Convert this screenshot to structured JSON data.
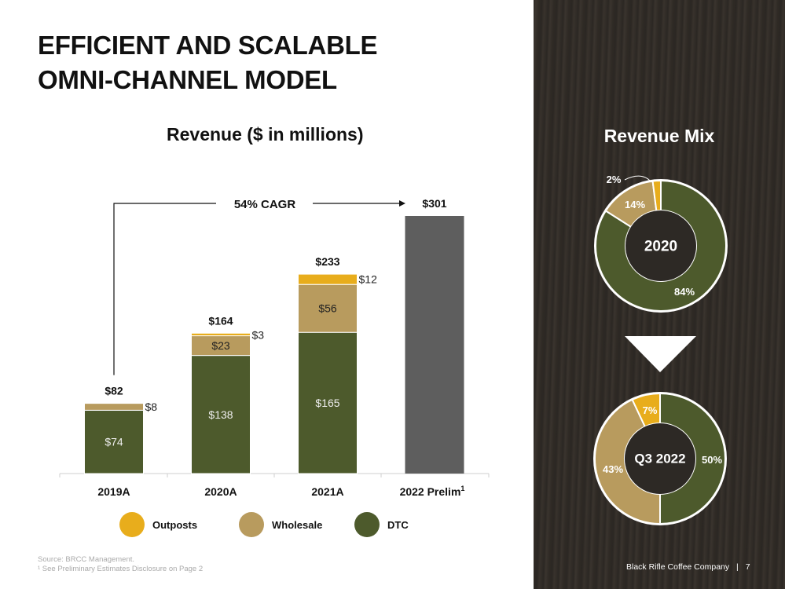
{
  "title_line1": "EFFICIENT AND SCALABLE",
  "title_line2": "OMNI-CHANNEL MODEL",
  "chart_data": [
    {
      "type": "bar",
      "stacked": true,
      "title": "Revenue ($ in millions)",
      "categories": [
        "2019A",
        "2020A",
        "2021A",
        "2022 Prelim"
      ],
      "category_footnote": "1",
      "series": [
        {
          "name": "DTC",
          "values": [
            74,
            138,
            165,
            null
          ],
          "labels": [
            "$74",
            "$138",
            "$165",
            ""
          ]
        },
        {
          "name": "Wholesale",
          "values": [
            8,
            23,
            56,
            null
          ],
          "labels": [
            "$8",
            "$23",
            "$56",
            ""
          ]
        },
        {
          "name": "Outposts",
          "values": [
            0,
            3,
            12,
            null
          ],
          "labels": [
            "",
            "$3",
            "$12",
            ""
          ]
        },
        {
          "name": "2022 Prelim Total",
          "values": [
            null,
            null,
            null,
            301
          ]
        }
      ],
      "totals": [
        "$82",
        "$164",
        "$233",
        "$301"
      ],
      "annotation": "54% CAGR",
      "ylim": [
        0,
        301
      ],
      "legend": [
        "Outposts",
        "Wholesale",
        "DTC"
      ]
    },
    {
      "type": "pie",
      "title": "Revenue Mix",
      "center_label": "2020",
      "labels": [
        "DTC",
        "Wholesale",
        "Outposts"
      ],
      "values": [
        84,
        14,
        2
      ],
      "value_labels": [
        "84%",
        "14%",
        "2%"
      ]
    },
    {
      "type": "pie",
      "title": "Revenue Mix",
      "center_label": "Q3 2022",
      "labels": [
        "DTC",
        "Wholesale",
        "Outposts"
      ],
      "values": [
        50,
        43,
        7
      ],
      "value_labels": [
        "50%",
        "43%",
        "7%"
      ]
    }
  ],
  "colors": {
    "dtc": "#4d5a2c",
    "wholesale": "#b89b5e",
    "outposts": "#e8ad1c",
    "prelim": "#5e5e5e",
    "panel": "#2d2925"
  },
  "legend_labels": {
    "outposts": "Outposts",
    "wholesale": "Wholesale",
    "dtc": "DTC"
  },
  "source_line1": "Source: BRCC Management.",
  "source_line2": "¹ See Preliminary Estimates Disclosure on Page 2",
  "panel_title": "Revenue Mix",
  "footer_company": "Black Rifle Coffee Company",
  "footer_separator": "|",
  "page_number": "7"
}
